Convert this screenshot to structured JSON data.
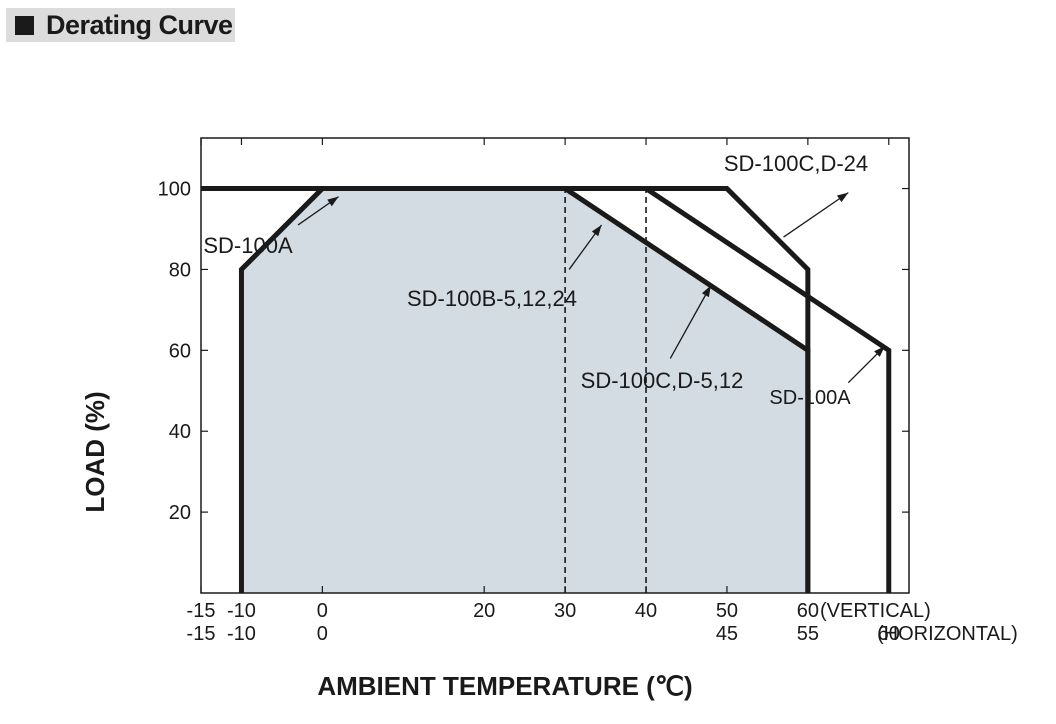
{
  "header": {
    "title": "Derating Curve",
    "icon": "black-square-icon"
  },
  "chart_data": {
    "type": "line",
    "title": "Derating Curve",
    "xlabel": "AMBIENT TEMPERATURE (℃)",
    "ylabel": "LOAD (%)",
    "xlim": [
      -15,
      72.5
    ],
    "ylim": [
      0,
      112.5
    ],
    "grid": false,
    "x_ticks_vertical": [
      "-15",
      "-10",
      "0",
      "20",
      "30",
      "40",
      "50",
      "60"
    ],
    "x_ticks_vertical_values": [
      -15,
      -10,
      0,
      20,
      30,
      40,
      50,
      60
    ],
    "x_ticks_horizontal": [
      "-15",
      "-10",
      "0",
      "45",
      "55",
      "60"
    ],
    "x_ticks_horizontal_values": [
      -15,
      -10,
      0,
      50,
      60,
      70
    ],
    "x_tick_row_labels": [
      "(VERTICAL)",
      "(HORIZONTAL)"
    ],
    "y_ticks": [
      "100",
      "80",
      "60",
      "40",
      "20"
    ],
    "y_tick_values": [
      100,
      80,
      60,
      40,
      20
    ],
    "shaded_region": {
      "x": [
        -10,
        -10,
        0,
        30,
        60,
        60
      ],
      "y": [
        0,
        80,
        100,
        100,
        60,
        0
      ],
      "color": "#d3dbe3"
    },
    "series": [
      {
        "x": [
          -15,
          50,
          60,
          60
        ],
        "y": [
          100,
          100,
          80,
          0
        ],
        "style": "solid-thick"
      },
      {
        "x": [
          -10,
          -10,
          0,
          30,
          60,
          60
        ],
        "y": [
          0,
          80,
          100,
          100,
          60,
          0
        ],
        "style": "solid-thick"
      },
      {
        "x": [
          40,
          70,
          70
        ],
        "y": [
          100,
          60,
          0
        ],
        "style": "solid-thick"
      },
      {
        "x": [
          30,
          30
        ],
        "y": [
          0,
          100
        ],
        "style": "dashed"
      },
      {
        "x": [
          40,
          40
        ],
        "y": [
          0,
          100
        ],
        "style": "dashed"
      }
    ],
    "annotations": [
      {
        "text": "SD-100C,D-24",
        "arrow_from": [
          57,
          88
        ],
        "arrow_to": [
          65,
          99
        ]
      },
      {
        "text": "SD-100A",
        "arrow_from": [
          -3,
          91
        ],
        "arrow_to": [
          2,
          98
        ]
      },
      {
        "text": "SD-100B-5,12,24",
        "arrow_from": [
          30.5,
          80
        ],
        "arrow_to": [
          34.5,
          91
        ]
      },
      {
        "text": "SD-100C,D-5,12",
        "arrow_from": [
          43,
          58
        ],
        "arrow_to": [
          48,
          76
        ]
      },
      {
        "text": "SD-100A",
        "arrow_from": [
          65,
          52
        ],
        "arrow_to": [
          69.5,
          61
        ]
      }
    ],
    "colors": {
      "line": "#1a1a1a",
      "fill": "#d3dbe3"
    }
  }
}
